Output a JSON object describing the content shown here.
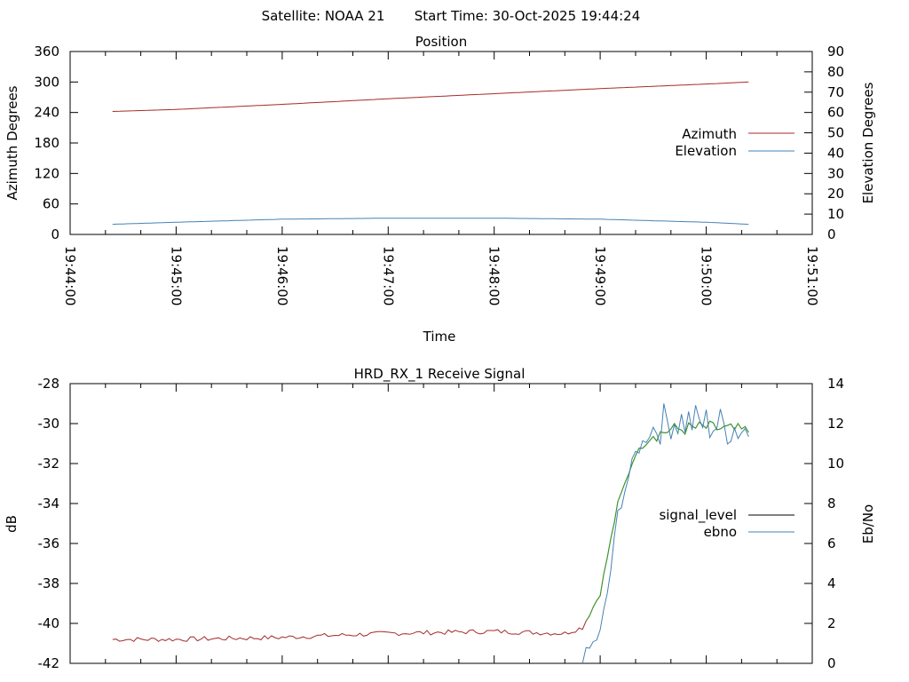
{
  "header": {
    "satellite": "Satellite: NOAA 21",
    "start_time": "Start Time: 30-Oct-2025 19:44:24"
  },
  "colors": {
    "azimuth": "#a52a2a",
    "elevation": "#4682b4",
    "ebno_green": "#2ca02c",
    "signal_level": "#000000"
  },
  "chart_data": [
    {
      "type": "line",
      "title": "Position",
      "xlabel": "Time",
      "ylabel": "Azimuth Degrees",
      "y2label": "Elevation Degrees",
      "xlim": [
        "19:44:00",
        "19:51:00"
      ],
      "x_ticks": [
        "19:44:00",
        "19:45:00",
        "19:46:00",
        "19:47:00",
        "19:48:00",
        "19:49:00",
        "19:50:00",
        "19:51:00"
      ],
      "ylim": [
        0,
        360
      ],
      "y_ticks": [
        "0",
        "60",
        "120",
        "180",
        "240",
        "300",
        "360"
      ],
      "y2lim": [
        0,
        90
      ],
      "y2_ticks": [
        "0",
        "10",
        "20",
        "30",
        "40",
        "50",
        "60",
        "70",
        "80",
        "90"
      ],
      "legend_position": "right",
      "series": [
        {
          "name": "Azimuth",
          "axis": "y",
          "x": [
            "19:44:24",
            "19:45:00",
            "19:46:00",
            "19:47:00",
            "19:48:00",
            "19:49:00",
            "19:50:00",
            "19:50:24"
          ],
          "values": [
            242,
            246,
            256,
            267,
            277,
            287,
            296,
            300
          ]
        },
        {
          "name": "Elevation",
          "axis": "y2",
          "x": [
            "19:44:24",
            "19:45:00",
            "19:46:00",
            "19:47:00",
            "19:48:00",
            "19:49:00",
            "19:50:00",
            "19:50:24"
          ],
          "values": [
            5,
            6,
            7.5,
            8,
            8,
            7.5,
            6,
            5
          ]
        }
      ]
    },
    {
      "type": "line",
      "title": "HRD_RX_1 Receive Signal",
      "ylabel": "dB",
      "y2label": "Eb/No",
      "xlim": [
        "19:44:00",
        "19:51:00"
      ],
      "ylim": [
        -42,
        -28
      ],
      "y_ticks": [
        "-28",
        "-30",
        "-32",
        "-34",
        "-36",
        "-38",
        "-40",
        "-42"
      ],
      "y2lim": [
        0,
        14
      ],
      "y2_ticks": [
        "0",
        "2",
        "4",
        "6",
        "8",
        "10",
        "12",
        "14"
      ],
      "legend_position": "right",
      "series": [
        {
          "name": "signal_level",
          "axis": "y",
          "x": [
            "19:44:24",
            "19:45:00",
            "19:46:00",
            "19:47:00",
            "19:48:00",
            "19:48:40",
            "19:48:50",
            "19:49:00",
            "19:49:10",
            "19:49:20",
            "19:49:30",
            "19:49:40",
            "19:50:00",
            "19:50:24"
          ],
          "values": [
            -40.8,
            -40.8,
            -40.7,
            -40.5,
            -40.4,
            -40.5,
            -40.2,
            -38.5,
            -34.0,
            -31.5,
            -30.6,
            -30.3,
            -30.2,
            -30.4
          ]
        },
        {
          "name": "ebno",
          "axis": "y2",
          "x": [
            "19:48:50",
            "19:49:00",
            "19:49:05",
            "19:49:10",
            "19:49:20",
            "19:49:30",
            "19:49:40",
            "19:50:00",
            "19:50:24"
          ],
          "values": [
            0.2,
            1.5,
            4.0,
            7.5,
            10.5,
            11.8,
            12.2,
            12.0,
            11.7
          ]
        }
      ]
    }
  ]
}
